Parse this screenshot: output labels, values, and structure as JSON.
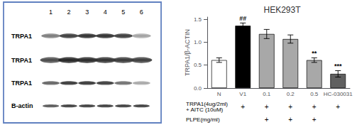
{
  "chart_data": [
    {
      "type": "blot",
      "color": "#6080c0",
      "lanes": [
        1,
        2,
        3,
        4,
        5,
        6
      ],
      "band_labels": [
        "TRPA1",
        "TRPA1",
        "TRPA1",
        "B-actin"
      ],
      "band_intensities": [
        [
          0.55,
          0.3,
          0.25,
          0.25,
          0.3,
          0.7
        ],
        [
          0.35,
          0.2,
          0.22,
          0.25,
          0.28,
          0.3
        ],
        [
          0.45,
          0.28,
          0.28,
          0.3,
          0.5,
          0.72
        ],
        [
          0.4,
          0.3,
          0.3,
          0.3,
          0.3,
          0.3
        ]
      ]
    },
    {
      "type": "bar",
      "title": "HEK293T",
      "ylabel": "TRPA1/β-ACTIN",
      "categories": [
        "N",
        "V1",
        "0.1",
        "0.2",
        "0.5",
        "HC-030031"
      ],
      "values": [
        0.61,
        1.36,
        1.18,
        1.07,
        0.61,
        0.31
      ],
      "errors": [
        0.05,
        0.06,
        0.1,
        0.09,
        0.05,
        0.07
      ],
      "colors": [
        "white",
        "black",
        "#a8a8a8",
        "#a8a8a8",
        "#a8a8a8",
        "#606060"
      ],
      "edge_color": "black",
      "ylim": [
        0,
        1.55
      ],
      "yticks": [
        {
          "value": 0,
          "label": "0.0"
        },
        0.5,
        {
          "value": 1,
          "label": "1.0"
        },
        1.5
      ],
      "grid": false,
      "annotations": [
        {
          "category": "V1",
          "text": "##"
        },
        {
          "category": "0.5",
          "text": "**"
        },
        {
          "category": "HC-030031",
          "text": "***"
        }
      ],
      "table": [
        {
          "label": "TRPA1(4ug/2ml)\n+ AITC (10uM)",
          "mark": "+",
          "categories": [
            "V1",
            "0.1",
            "0.2",
            "0.5",
            "HC-030031"
          ]
        },
        {
          "label": "PLPE(mg/ml)",
          "mark": "+",
          "categories": [
            "0.1",
            "0.2",
            "0.5"
          ]
        }
      ]
    }
  ]
}
